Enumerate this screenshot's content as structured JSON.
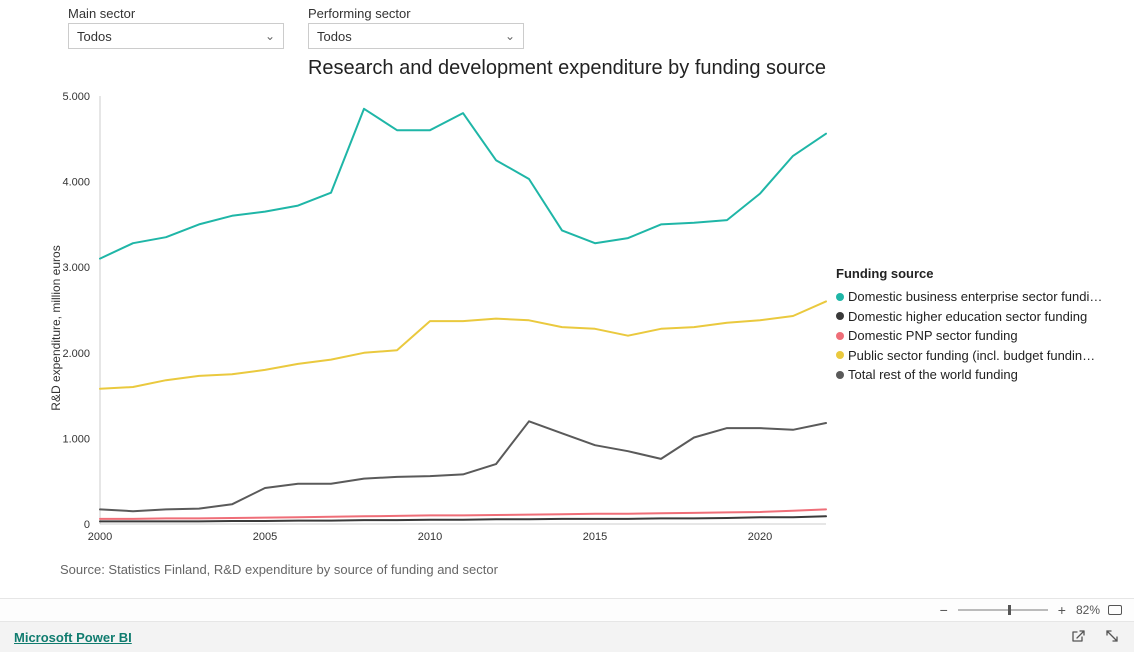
{
  "filters": {
    "main_sector": {
      "label": "Main sector",
      "value": "Todos"
    },
    "performing_sector": {
      "label": "Performing sector",
      "value": "Todos"
    }
  },
  "chart": {
    "type": "line",
    "title": "Research and development expenditure by funding source",
    "ylabel": "R&D expenditure, million euros",
    "source_note": "Source: Statistics Finland, R&D expenditure by source of funding and sector",
    "background_color": "#ffffff",
    "grid_color": "#e0e0e0",
    "axis_color": "#cccccc",
    "label_fontsize": 12,
    "title_fontsize": 20,
    "tick_fontsize": 11,
    "ylim": [
      0,
      5000
    ],
    "ytick_step": 1000,
    "ytick_labels": [
      "0",
      "1.000",
      "2.000",
      "3.000",
      "4.000",
      "5.000"
    ],
    "xlim": [
      2000,
      2022
    ],
    "xtick_step": 5,
    "xtick_labels": [
      "2000",
      "2005",
      "2010",
      "2015",
      "2020"
    ],
    "years": [
      2000,
      2001,
      2002,
      2003,
      2004,
      2005,
      2006,
      2007,
      2008,
      2009,
      2010,
      2011,
      2012,
      2013,
      2014,
      2015,
      2016,
      2017,
      2018,
      2019,
      2020,
      2021,
      2022
    ],
    "legend_title": "Funding source",
    "line_width": 2,
    "series": [
      {
        "name": "Domestic business enterprise sector fundi…",
        "color": "#1fb6a7",
        "values": [
          3100,
          3280,
          3350,
          3500,
          3600,
          3650,
          3720,
          3870,
          4850,
          4600,
          4600,
          4800,
          4250,
          4030,
          3430,
          3280,
          3340,
          3500,
          3520,
          3550,
          3860,
          4300,
          4560
        ]
      },
      {
        "name": "Domestic higher education sector funding",
        "color": "#3a3a3a",
        "values": [
          30,
          30,
          30,
          30,
          35,
          35,
          40,
          40,
          45,
          45,
          50,
          50,
          55,
          55,
          60,
          60,
          60,
          65,
          65,
          70,
          80,
          80,
          90
        ]
      },
      {
        "name": "Domestic PNP sector funding",
        "color": "#ef6e78",
        "values": [
          60,
          60,
          65,
          65,
          70,
          75,
          80,
          85,
          90,
          95,
          100,
          100,
          105,
          110,
          115,
          120,
          120,
          125,
          130,
          135,
          140,
          155,
          170
        ]
      },
      {
        "name": "Public sector funding (incl. budget fundin…",
        "color": "#eac93e",
        "values": [
          1580,
          1600,
          1680,
          1730,
          1750,
          1800,
          1870,
          1920,
          2000,
          2030,
          2370,
          2370,
          2400,
          2380,
          2300,
          2280,
          2200,
          2280,
          2300,
          2350,
          2380,
          2430,
          2600
        ]
      },
      {
        "name": "Total rest of the world funding",
        "color": "#5a5a5a",
        "values": [
          170,
          150,
          170,
          180,
          230,
          420,
          470,
          470,
          530,
          550,
          560,
          580,
          700,
          1200,
          1060,
          920,
          850,
          760,
          1010,
          1120,
          1120,
          1100,
          1180
        ]
      }
    ]
  },
  "zoom": {
    "minus": "−",
    "plus": "+",
    "percent_label": "82%",
    "value_pct": 56
  },
  "footer": {
    "brand": "Microsoft Power BI"
  }
}
